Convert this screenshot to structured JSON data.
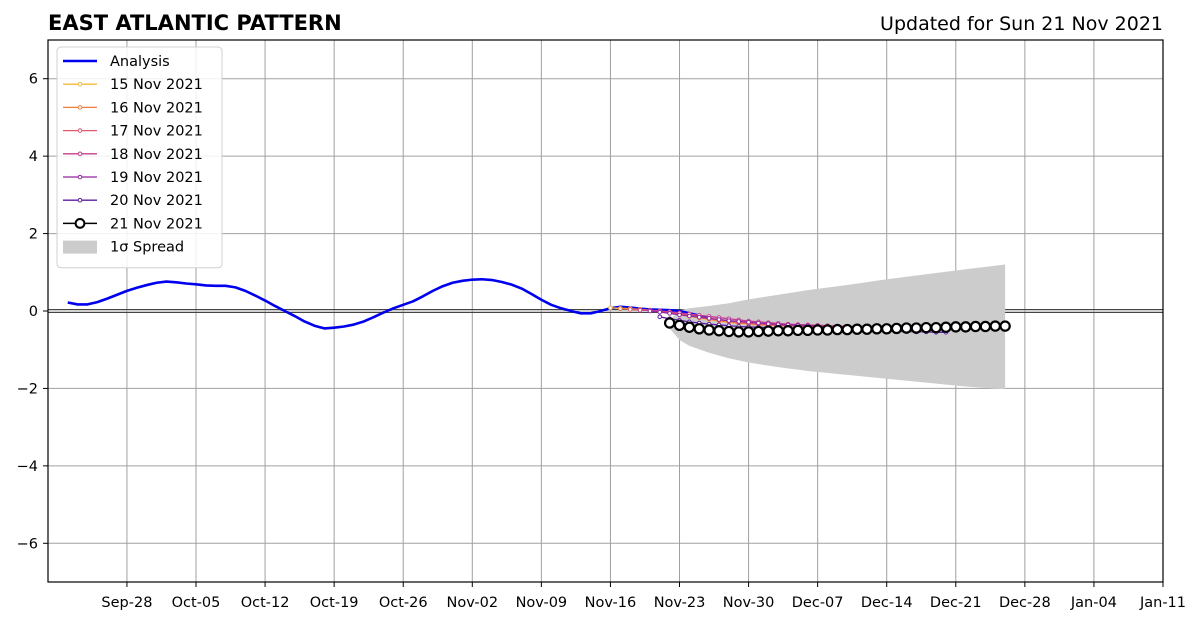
{
  "header": {
    "title": "EAST ATLANTIC PATTERN",
    "updated": "Updated for Sun 21 Nov 2021"
  },
  "chart_data": {
    "type": "line",
    "title": "EAST ATLANTIC PATTERN",
    "subtitle": "Updated for Sun 21 Nov 2021",
    "xlabel": "",
    "ylabel": "",
    "ylim": [
      -7,
      7
    ],
    "xlim": [
      "2021-09-20",
      "2022-01-11"
    ],
    "grid": true,
    "legend_position": "top-left",
    "x_ticks": [
      "Sep-28",
      "Oct-05",
      "Oct-12",
      "Oct-19",
      "Oct-26",
      "Nov-02",
      "Nov-09",
      "Nov-16",
      "Nov-23",
      "Nov-30",
      "Dec-07",
      "Dec-14",
      "Dec-21",
      "Dec-28",
      "Jan-04",
      "Jan-11"
    ],
    "x_tick_dates": [
      "2021-09-28",
      "2021-10-05",
      "2021-10-12",
      "2021-10-19",
      "2021-10-26",
      "2021-11-02",
      "2021-11-09",
      "2021-11-16",
      "2021-11-23",
      "2021-11-30",
      "2021-12-07",
      "2021-12-14",
      "2021-12-21",
      "2021-12-28",
      "2022-01-04",
      "2022-01-11"
    ],
    "y_ticks": [
      -6,
      -4,
      -2,
      0,
      2,
      4,
      6
    ],
    "y_tick_labels": [
      "−6",
      "−4",
      "−2",
      "0",
      "2",
      "4",
      "6"
    ],
    "analysis": {
      "name": "Analysis",
      "color": "#0000ee",
      "start": "2021-09-22",
      "values": [
        0.22,
        0.17,
        0.17,
        0.23,
        0.32,
        0.42,
        0.52,
        0.6,
        0.67,
        0.73,
        0.76,
        0.74,
        0.71,
        0.69,
        0.66,
        0.65,
        0.65,
        0.61,
        0.52,
        0.4,
        0.27,
        0.13,
        0.0,
        -0.13,
        -0.27,
        -0.38,
        -0.45,
        -0.43,
        -0.4,
        -0.35,
        -0.27,
        -0.16,
        -0.04,
        0.07,
        0.16,
        0.25,
        0.38,
        0.52,
        0.64,
        0.73,
        0.78,
        0.81,
        0.82,
        0.8,
        0.75,
        0.68,
        0.58,
        0.44,
        0.29,
        0.16,
        0.07,
        0.0,
        -0.06,
        -0.06,
        0.0,
        0.07,
        0.11,
        0.09,
        0.06,
        0.04,
        0.03,
        0.02,
        0.0,
        -0.06,
        -0.12,
        -0.2
      ]
    },
    "forecasts": [
      {
        "name": "15 Nov 2021",
        "color": "#f5b83d",
        "start": "2021-11-16",
        "values": [
          0.08,
          0.07,
          0.06,
          0.04,
          0.02,
          -0.02,
          -0.06,
          -0.1,
          -0.14,
          -0.18,
          -0.22,
          -0.26,
          -0.29,
          -0.32,
          -0.34,
          -0.36,
          -0.37,
          -0.38,
          -0.38,
          -0.39,
          -0.39,
          -0.4,
          -0.4,
          -0.41,
          -0.41,
          -0.42,
          -0.42,
          -0.43,
          -0.43,
          -0.43
        ]
      },
      {
        "name": "16 Nov 2021",
        "color": "#f07f3c",
        "start": "2021-11-17",
        "values": [
          0.06,
          0.05,
          0.04,
          0.02,
          -0.01,
          -0.05,
          -0.09,
          -0.13,
          -0.17,
          -0.21,
          -0.25,
          -0.28,
          -0.31,
          -0.33,
          -0.35,
          -0.36,
          -0.37,
          -0.38,
          -0.39,
          -0.39,
          -0.4,
          -0.4,
          -0.41,
          -0.41,
          -0.42,
          -0.42,
          -0.43,
          -0.43,
          -0.43,
          -0.44
        ]
      },
      {
        "name": "17 Nov 2021",
        "color": "#e05a6e",
        "start": "2021-11-18",
        "values": [
          0.04,
          0.03,
          0.02,
          0.0,
          -0.03,
          -0.07,
          -0.11,
          -0.15,
          -0.19,
          -0.23,
          -0.26,
          -0.29,
          -0.32,
          -0.34,
          -0.36,
          -0.37,
          -0.38,
          -0.39,
          -0.4,
          -0.41,
          -0.41,
          -0.42,
          -0.42,
          -0.43,
          -0.43,
          -0.44,
          -0.44,
          -0.45,
          -0.45,
          -0.46
        ]
      },
      {
        "name": "18 Nov 2021",
        "color": "#c53d8c",
        "start": "2021-11-19",
        "values": [
          0.02,
          0.02,
          0.0,
          -0.02,
          -0.05,
          -0.08,
          -0.11,
          -0.14,
          -0.17,
          -0.2,
          -0.23,
          -0.26,
          -0.28,
          -0.3,
          -0.32,
          -0.34,
          -0.35,
          -0.36,
          -0.37,
          -0.38,
          -0.39,
          -0.4,
          -0.41,
          -0.42,
          -0.43,
          -0.44,
          -0.45,
          -0.46,
          -0.47,
          -0.48
        ]
      },
      {
        "name": "19 Nov 2021",
        "color": "#9425a0",
        "start": "2021-11-20",
        "values": [
          0.0,
          -0.03,
          -0.06,
          -0.1,
          -0.13,
          -0.16,
          -0.19,
          -0.22,
          -0.25,
          -0.27,
          -0.29,
          -0.31,
          -0.33,
          -0.35,
          -0.36,
          -0.37,
          -0.38,
          -0.39,
          -0.4,
          -0.41,
          -0.42,
          -0.43,
          -0.44,
          -0.45,
          -0.46,
          -0.47,
          -0.48,
          -0.49,
          -0.5,
          -0.5
        ]
      },
      {
        "name": "20 Nov 2021",
        "color": "#5b1aa0",
        "start": "2021-11-21",
        "values": [
          -0.15,
          -0.2,
          -0.24,
          -0.28,
          -0.31,
          -0.34,
          -0.36,
          -0.38,
          -0.4,
          -0.41,
          -0.42,
          -0.43,
          -0.44,
          -0.45,
          -0.46,
          -0.47,
          -0.48,
          -0.49,
          -0.5,
          -0.5,
          -0.51,
          -0.51,
          -0.52,
          -0.52,
          -0.53,
          -0.53,
          -0.54,
          -0.54,
          -0.55,
          -0.55
        ]
      },
      {
        "name": "21 Nov 2021",
        "color": "#000000",
        "start": "2021-11-22",
        "values": [
          -0.31,
          -0.37,
          -0.42,
          -0.46,
          -0.49,
          -0.51,
          -0.53,
          -0.54,
          -0.54,
          -0.53,
          -0.52,
          -0.51,
          -0.51,
          -0.5,
          -0.5,
          -0.49,
          -0.49,
          -0.48,
          -0.48,
          -0.47,
          -0.47,
          -0.46,
          -0.46,
          -0.45,
          -0.44,
          -0.44,
          -0.43,
          -0.43,
          -0.42,
          -0.41,
          -0.41,
          -0.4,
          -0.4,
          -0.39,
          -0.39
        ]
      }
    ],
    "spread": {
      "name": "1σ Spread",
      "color": "#cccccc",
      "dates": [
        "2021-11-22",
        "2021-11-23",
        "2021-11-24",
        "2021-11-26",
        "2021-11-28",
        "2021-11-30",
        "2021-12-03",
        "2021-12-06",
        "2021-12-10",
        "2021-12-14",
        "2021-12-18",
        "2021-12-22",
        "2021-12-26"
      ],
      "upper": [
        -0.25,
        0.02,
        0.07,
        0.13,
        0.2,
        0.3,
        0.42,
        0.54,
        0.67,
        0.82,
        0.95,
        1.08,
        1.2
      ],
      "lower": [
        -0.45,
        -0.75,
        -0.9,
        -1.08,
        -1.22,
        -1.33,
        -1.45,
        -1.55,
        -1.65,
        -1.75,
        -1.85,
        -1.95,
        -2.02
      ]
    }
  },
  "legend": {
    "items": [
      {
        "label": "Analysis",
        "kind": "line",
        "color": "#0000ee"
      },
      {
        "label": "15 Nov 2021",
        "kind": "marker-line",
        "color": "#f5b83d"
      },
      {
        "label": "16 Nov 2021",
        "kind": "marker-line",
        "color": "#f07f3c"
      },
      {
        "label": "17 Nov 2021",
        "kind": "marker-line",
        "color": "#e05a6e"
      },
      {
        "label": "18 Nov 2021",
        "kind": "marker-line",
        "color": "#c53d8c"
      },
      {
        "label": "19 Nov 2021",
        "kind": "marker-line",
        "color": "#9425a0"
      },
      {
        "label": "20 Nov 2021",
        "kind": "marker-line",
        "color": "#5b1aa0"
      },
      {
        "label": "21 Nov 2021",
        "kind": "big-marker-line",
        "color": "#000000"
      },
      {
        "label": "1σ Spread",
        "kind": "patch",
        "color": "#cccccc"
      }
    ]
  }
}
